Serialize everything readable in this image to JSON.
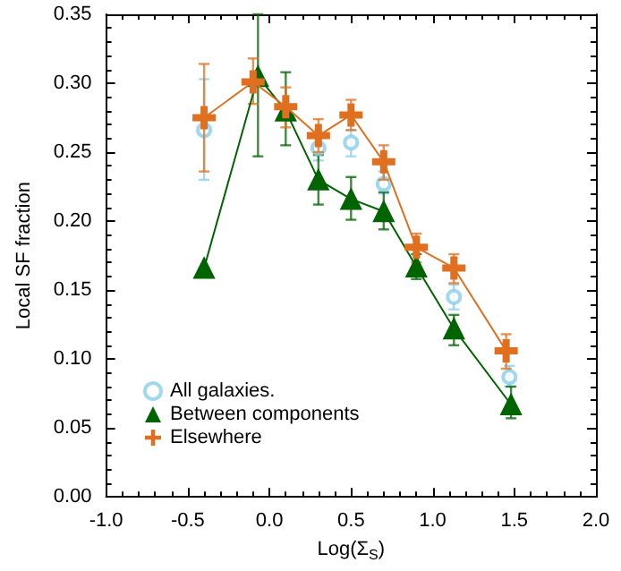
{
  "chart_data": {
    "type": "line",
    "xlabel": "Log(Σ$_{S}$)",
    "ylabel": "Local SF fraction",
    "xlim": [
      -1.0,
      2.0
    ],
    "xticks": [
      {
        "value": -1,
        "label": "-1.0"
      },
      {
        "value": -0.5,
        "label": "-0.5"
      },
      {
        "value": 0,
        "label": "0.0"
      },
      {
        "value": 0.5,
        "label": "0.5"
      },
      {
        "value": 1,
        "label": "1.0"
      },
      {
        "value": 1.5,
        "label": "1.5"
      },
      {
        "value": 2,
        "label": "2.0"
      }
    ],
    "ylim": [
      0,
      0.35
    ],
    "yticks": [
      {
        "value": 0,
        "label": "0.00"
      },
      {
        "value": 0.05,
        "label": "0.05"
      },
      {
        "value": 0.1,
        "label": "0.10"
      },
      {
        "value": 0.15,
        "label": "0.15"
      },
      {
        "value": 0.2,
        "label": "0.20"
      },
      {
        "value": 0.25,
        "label": "0.25"
      },
      {
        "value": 0.3,
        "label": "0.30"
      },
      {
        "value": 0.35,
        "label": "0.35"
      }
    ],
    "grid": false,
    "legend": "bottom left",
    "series": [
      {
        "name": "All galaxies.",
        "type": "scatter",
        "marker": "circle",
        "color": "#87ceeb",
        "x": [
          -0.4,
          -0.1,
          0.1,
          0.3,
          0.5,
          0.7,
          0.9,
          1.13,
          1.47
        ],
        "values": [
          0.266,
          null,
          null,
          0.253,
          0.257,
          0.227,
          null,
          0.145,
          0.087
        ],
        "errors": [
          [
            0.23,
            0.303
          ],
          null,
          null,
          [
            0.244,
            0.262
          ],
          [
            0.247,
            0.266
          ],
          [
            0.22,
            0.236
          ],
          null,
          [
            0.136,
            0.154
          ],
          [
            0.08,
            0.095
          ]
        ]
      },
      {
        "name": "Between components",
        "type": "line",
        "marker": "triangle",
        "color": "#006400",
        "x": [
          -0.4,
          -0.07,
          0.1,
          0.3,
          0.5,
          0.7,
          0.9,
          1.13,
          1.48
        ],
        "values": [
          0.166,
          0.305,
          0.28,
          0.23,
          0.216,
          0.207,
          0.167,
          0.122,
          0.067
        ],
        "errors": [
          null,
          [
            0.247,
            0.35
          ],
          [
            0.255,
            0.308
          ],
          [
            0.212,
            0.248
          ],
          [
            0.201,
            0.232
          ],
          [
            0.194,
            0.221
          ],
          [
            0.158,
            0.176
          ],
          [
            0.11,
            0.132
          ],
          [
            0.057,
            0.08
          ]
        ]
      },
      {
        "name": "Elsewhere",
        "type": "line",
        "marker": "cross",
        "color": "#e07020",
        "x": [
          -0.4,
          -0.1,
          0.1,
          0.3,
          0.5,
          0.7,
          0.9,
          1.13,
          1.45
        ],
        "values": [
          0.275,
          0.301,
          0.283,
          0.262,
          0.277,
          0.243,
          0.181,
          0.166,
          0.106
        ],
        "errors": [
          [
            0.236,
            0.314
          ],
          [
            0.285,
            0.318
          ],
          [
            0.268,
            0.297
          ],
          [
            0.25,
            0.274
          ],
          [
            0.266,
            0.288
          ],
          [
            0.23,
            0.255
          ],
          [
            0.17,
            0.191
          ],
          [
            0.155,
            0.176
          ],
          [
            0.093,
            0.118
          ]
        ]
      }
    ]
  }
}
